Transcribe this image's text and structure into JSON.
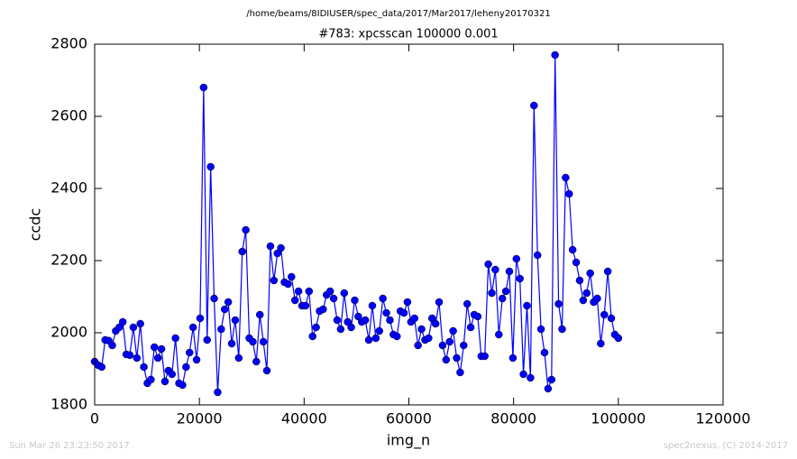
{
  "chart_data": {
    "type": "line",
    "suptitle": "/home/beams/8IDIUSER/spec_data/2017/Mar2017/leheny20170321",
    "title": "#783: xpcsscan 100000 0.001",
    "xlabel": "img_n",
    "ylabel": "ccdc",
    "footer_left": "Sun Mar 26 23:23:50 2017",
    "footer_right": "spec2nexus, (C) 2014-2017",
    "xlim": [
      0,
      120000
    ],
    "xticks": [
      0,
      20000,
      40000,
      60000,
      80000,
      100000,
      120000
    ],
    "ylim": [
      1800,
      2800
    ],
    "yticks": [
      1800,
      2000,
      2200,
      2400,
      2600,
      2800
    ],
    "grid": false,
    "x": [
      0,
      671,
      1342,
      2013,
      2685,
      3356,
      4027,
      4698,
      5369,
      6040,
      6711,
      7383,
      8054,
      8725,
      9396,
      10067,
      10738,
      11409,
      12081,
      12752,
      13423,
      14094,
      14765,
      15436,
      16107,
      16779,
      17450,
      18121,
      18792,
      19463,
      20134,
      20805,
      21477,
      22148,
      22819,
      23490,
      24161,
      24832,
      25503,
      26174,
      26846,
      27517,
      28188,
      28859,
      29530,
      30201,
      30872,
      31544,
      32215,
      32886,
      33557,
      34228,
      34899,
      35570,
      36242,
      36913,
      37584,
      38255,
      38926,
      39597,
      40268,
      40940,
      41611,
      42282,
      42953,
      43624,
      44295,
      44966,
      45638,
      46309,
      46980,
      47651,
      48322,
      48993,
      49664,
      50336,
      51007,
      51678,
      52349,
      53020,
      53691,
      54362,
      55034,
      55705,
      56376,
      57047,
      57718,
      58389,
      59060,
      59732,
      60403,
      61074,
      61745,
      62416,
      63087,
      63758,
      64430,
      65101,
      65772,
      66443,
      67114,
      67785,
      68456,
      69128,
      69799,
      70470,
      71141,
      71812,
      72483,
      73154,
      73826,
      74497,
      75168,
      75839,
      76510,
      77181,
      77852,
      78523,
      79195,
      79866,
      80537,
      81208,
      81879,
      82550,
      83221,
      83893,
      84564,
      85235,
      85906,
      86577,
      87248,
      87919,
      88591,
      89262,
      89933,
      90604,
      91275,
      91946,
      92617,
      93289,
      93960,
      94631,
      95302,
      95973,
      96644,
      97315,
      97987,
      98658,
      99329,
      100000
    ],
    "series": [
      {
        "name": "ccdc",
        "color": "#0000ff",
        "values": [
          1920,
          1910,
          1905,
          1980,
          1978,
          1965,
          2005,
          2015,
          2030,
          1940,
          1938,
          2015,
          1930,
          2025,
          1905,
          1860,
          1870,
          1960,
          1930,
          1955,
          1865,
          1895,
          1885,
          1985,
          1860,
          1855,
          1905,
          1945,
          2015,
          1925,
          2040,
          2680,
          1980,
          2460,
          2095,
          1835,
          2010,
          2065,
          2085,
          1970,
          2035,
          1930,
          2225,
          2285,
          1985,
          1975,
          1920,
          2050,
          1975,
          1895,
          2240,
          2145,
          2220,
          2235,
          2140,
          2135,
          2155,
          2090,
          2115,
          2075,
          2075,
          2115,
          1990,
          2015,
          2060,
          2065,
          2105,
          2115,
          2095,
          2035,
          2010,
          2110,
          2030,
          2015,
          2090,
          2045,
          2030,
          2035,
          1980,
          2075,
          1985,
          2005,
          2095,
          2055,
          2035,
          1995,
          1990,
          2060,
          2055,
          2085,
          2030,
          2040,
          1965,
          2010,
          1980,
          1985,
          2040,
          2025,
          2085,
          1965,
          1925,
          1975,
          2005,
          1930,
          1890,
          1965,
          2080,
          2015,
          2050,
          2045,
          1935,
          1935,
          2190,
          2110,
          2175,
          1995,
          2095,
          2115,
          2170,
          1930,
          2205,
          2150,
          1885,
          2075,
          1875,
          2630,
          2215,
          2010,
          1945,
          1845,
          1870,
          2770,
          2080,
          2010,
          2430,
          2385,
          2230,
          2195,
          2145,
          2090,
          2110,
          2165,
          2085,
          2095,
          1970,
          2050,
          2170,
          2040,
          1995,
          1985
        ]
      }
    ]
  }
}
